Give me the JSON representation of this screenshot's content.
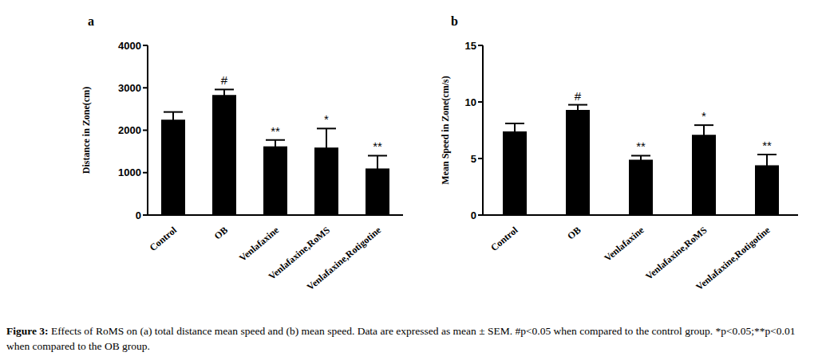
{
  "caption_label": "Figure 3:",
  "caption": "Effects of RoMS on (a) total distance mean speed and (b) mean speed. Data are expressed as mean ± SEM. #p<0.05 when compared to the control group. *p<0.05;**p<0.01 when compared to the OB group.",
  "chart_data": [
    {
      "type": "bar",
      "title": "a",
      "y_label": "Distance in Zone(cm)",
      "categories": [
        "Control",
        "OB",
        "Venlafaxine",
        "Venlafaxine,RoMS",
        "Venlafaxine,Rotigotine"
      ],
      "values": [
        2250,
        2830,
        1620,
        1590,
        1100
      ],
      "errors": [
        180,
        130,
        150,
        450,
        300
      ],
      "markers": [
        null,
        "#",
        "**",
        "*",
        "**"
      ],
      "color": "#000000",
      "ylim": [
        0,
        4000
      ],
      "yticks": [
        0,
        1000,
        2000,
        3000,
        4000
      ]
    },
    {
      "type": "bar",
      "title": "b",
      "y_label": "Mean Speed in Zone(cm/s)",
      "categories": [
        "Control",
        "OB",
        "Venlafaxine",
        "Venlafaxine,RoMS",
        "Venlafaxine,Rotigotine"
      ],
      "values": [
        7.4,
        9.3,
        4.9,
        7.1,
        4.4
      ],
      "errors": [
        0.7,
        0.45,
        0.35,
        0.85,
        0.95
      ],
      "markers": [
        null,
        "#",
        "**",
        "*",
        "**"
      ],
      "color": "#000000",
      "ylim": [
        0,
        15
      ],
      "yticks": [
        0,
        5,
        10,
        15
      ]
    }
  ]
}
